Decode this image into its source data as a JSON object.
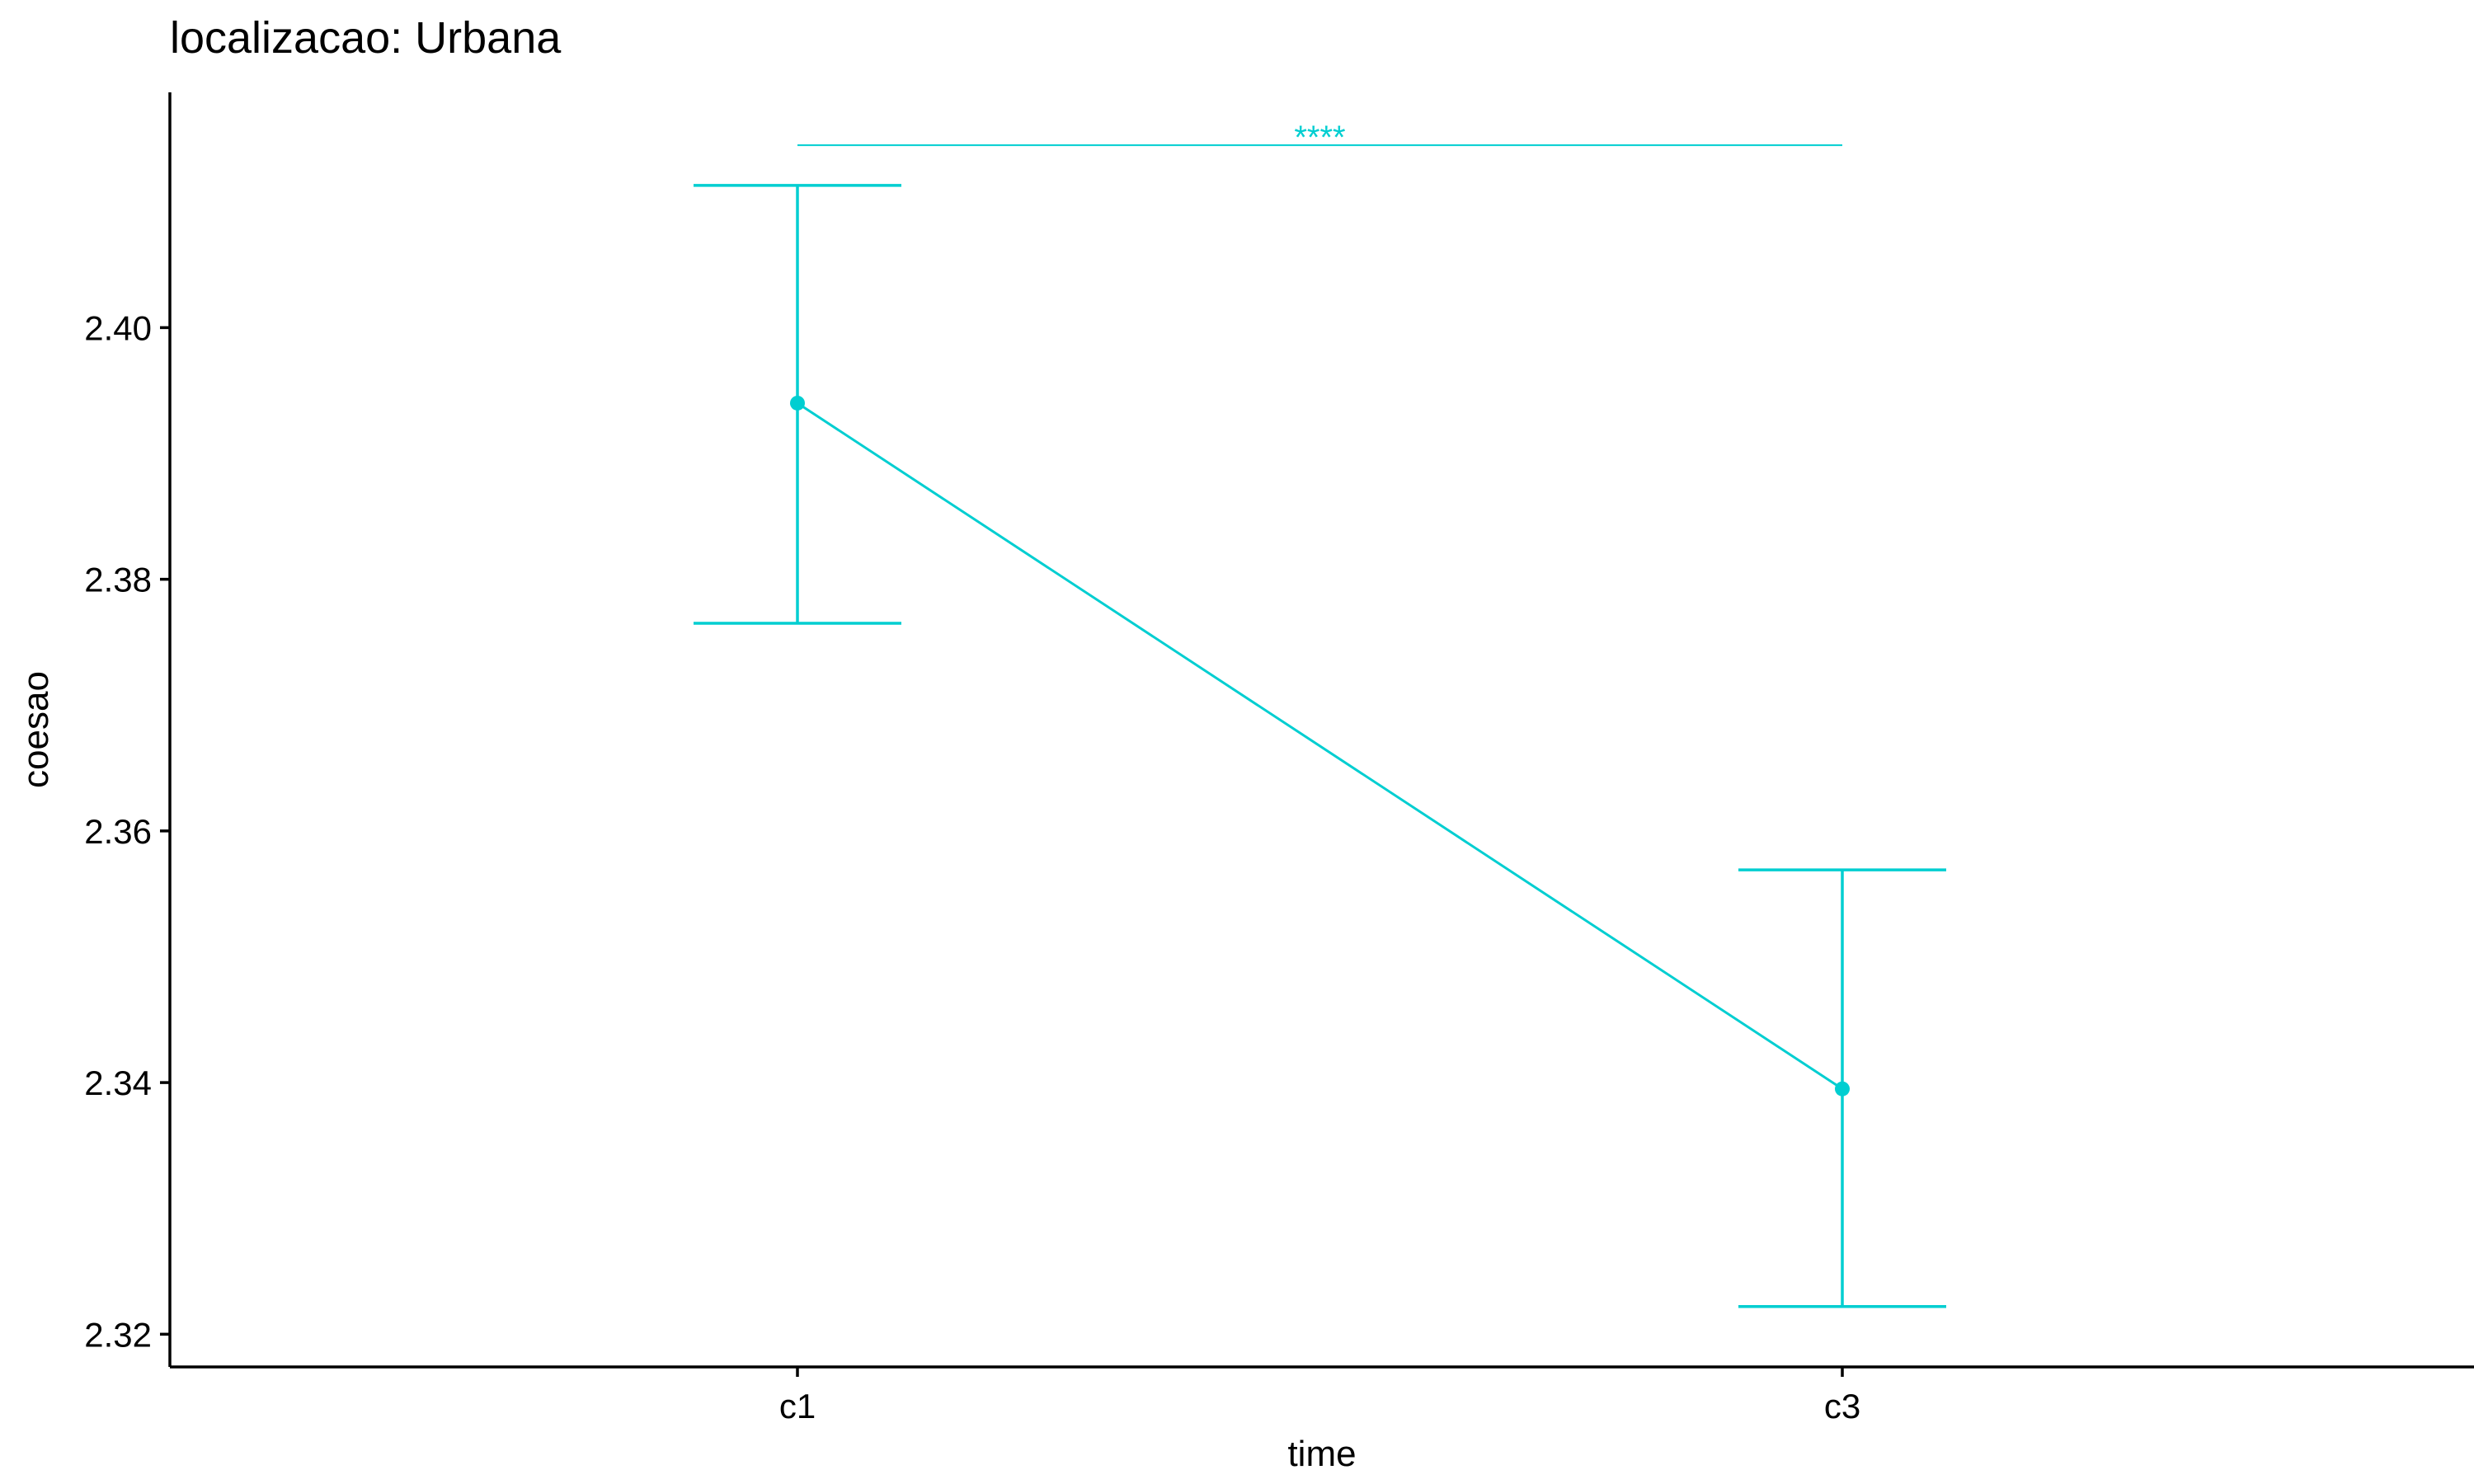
{
  "chart_data": {
    "type": "line",
    "title": "localizacao: Urbana",
    "xlabel": "time",
    "ylabel": "coesao",
    "categories": [
      "c1",
      "c3"
    ],
    "values": [
      2.394,
      2.3395
    ],
    "error_bars": [
      {
        "lower": 2.3765,
        "upper": 2.4113
      },
      {
        "lower": 2.3222,
        "upper": 2.3569
      }
    ],
    "ylim": [
      2.3174,
      2.4187
    ],
    "yticks": [
      2.32,
      2.34,
      2.36,
      2.38,
      2.4
    ],
    "ytick_labels": [
      "2.32",
      "2.34",
      "2.36",
      "2.38",
      "2.40"
    ],
    "significance": {
      "from": "c1",
      "to": "c3",
      "label": "****",
      "y": 2.4145
    },
    "grid": false,
    "legend": "none",
    "color": "#00CED1"
  }
}
